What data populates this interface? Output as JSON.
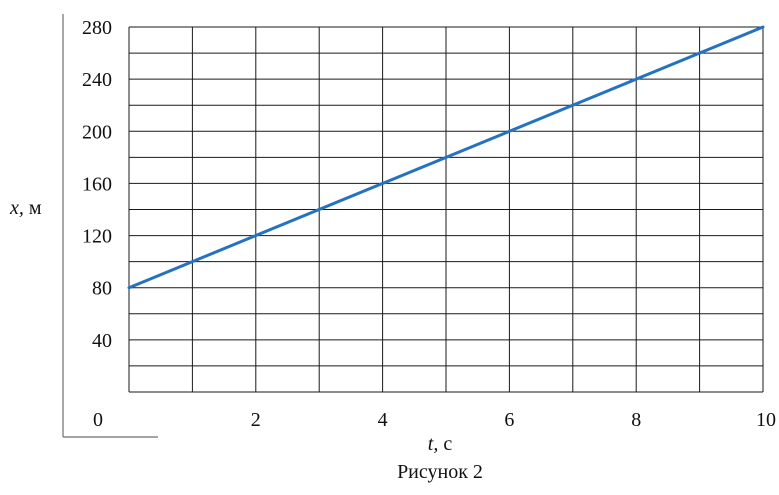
{
  "chart_data": {
    "type": "line",
    "xlabel_var": "t,",
    "xlabel_unit": " с",
    "ylabel_var": "x,",
    "ylabel_unit": " м",
    "origin_label": "0",
    "caption": "Рисунок 2",
    "xlim": [
      0,
      10
    ],
    "ylim": [
      0,
      280
    ],
    "x_ticks": [
      2,
      4,
      6,
      8,
      10
    ],
    "y_ticks": [
      40,
      80,
      120,
      160,
      200,
      240,
      280
    ],
    "x_grid_step": 1,
    "y_grid_step": 20,
    "grid": true,
    "series": [
      {
        "x": [
          0,
          10
        ],
        "y": [
          80,
          280
        ],
        "color": "#2472c0"
      }
    ]
  }
}
